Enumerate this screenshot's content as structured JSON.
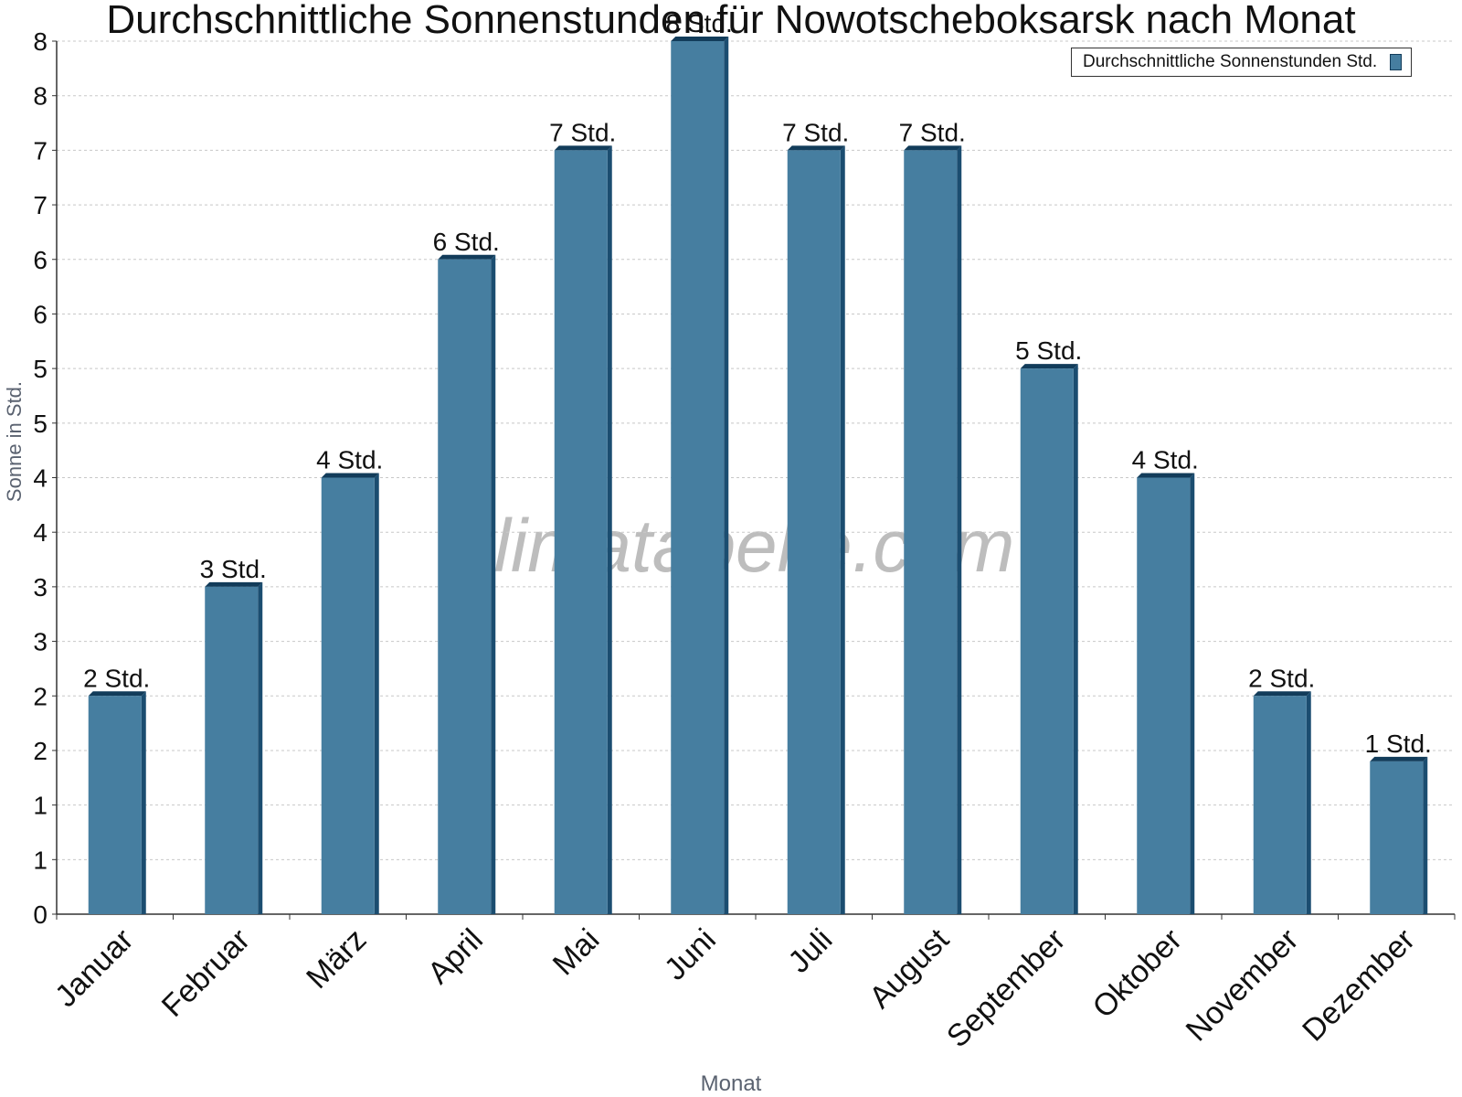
{
  "chart_data": {
    "type": "bar",
    "title": "Durchschnittliche Sonnenstunden für Nowotscheboksarsk nach Monat",
    "xlabel": "Monat",
    "ylabel": "Sonne in Std.",
    "categories": [
      "Januar",
      "Februar",
      "März",
      "April",
      "Mai",
      "Juni",
      "Juli",
      "August",
      "September",
      "Oktober",
      "November",
      "Dezember"
    ],
    "series": [
      {
        "name": "Durchschnittliche Sonnenstunden Std.",
        "values": [
          2.0,
          3.0,
          4.0,
          6.0,
          7.0,
          8.0,
          7.0,
          7.0,
          5.0,
          4.0,
          2.0,
          1.4
        ],
        "labels": [
          "2 Std.",
          "3 Std.",
          "4 Std.",
          "6 Std.",
          "7 Std.",
          "8 Std.",
          "7 Std.",
          "7 Std.",
          "5 Std.",
          "4 Std.",
          "2 Std.",
          "1 Std."
        ]
      }
    ],
    "ylim": [
      0,
      8
    ],
    "yticks": [
      0,
      0.5,
      1,
      1.5,
      2,
      2.5,
      3,
      3.5,
      4,
      4.5,
      5,
      5.5,
      6,
      6.5,
      7,
      7.5,
      8
    ],
    "ytick_labels": [
      "0",
      "1",
      "1",
      "2",
      "2",
      "3",
      "3",
      "4",
      "4",
      "5",
      "5",
      "6",
      "6",
      "7",
      "7",
      "8",
      "8"
    ],
    "grid": true,
    "legend_position": "top-right",
    "watermark": "klimatabelle.com",
    "colors": {
      "bar": "#467ea0",
      "bar_side": "#1b4d70",
      "bar_top": "#123c5a"
    }
  }
}
